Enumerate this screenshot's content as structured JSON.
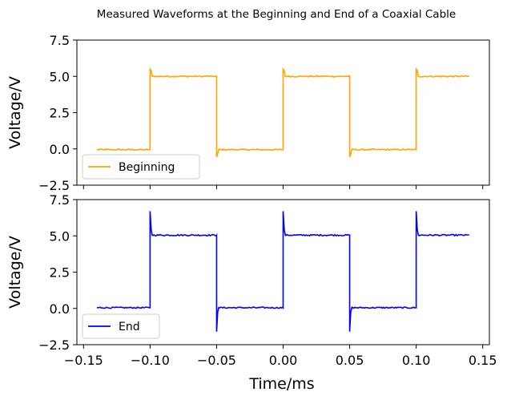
{
  "chart_data": {
    "type": "line",
    "title": "Measured Waveforms at the Beginning and End of a Coaxial Cable",
    "xlabel": "Time/ms",
    "xlim": [
      -0.155,
      0.155
    ],
    "xticks": [
      -0.15,
      -0.1,
      -0.05,
      0.0,
      0.05,
      0.1,
      0.15
    ],
    "xtick_labels": [
      "−0.15",
      "−0.10",
      "−0.05",
      "0.00",
      "0.05",
      "0.10",
      "0.15"
    ],
    "grid": false,
    "panels": [
      {
        "ylabel": "Voltage/V",
        "ylim": [
          -2.5,
          7.5
        ],
        "yticks": [
          -2.5,
          0.0,
          2.5,
          5.0,
          7.5
        ],
        "ytick_labels": [
          "−2.5",
          "0.0",
          "2.5",
          "5.0",
          "7.5"
        ],
        "legend_position": "lower-left",
        "series": [
          {
            "name": "Beginning",
            "color": "#ffa500",
            "low_level": -0.05,
            "high_level": 5.0,
            "edges": [
              -0.1,
              -0.05,
              0.0,
              0.05,
              0.1
            ],
            "rise_overshoot": 5.5,
            "fall_undershoot": -0.55,
            "x_start": -0.14,
            "x_end": 0.14
          }
        ]
      },
      {
        "ylabel": "Voltage/V",
        "ylim": [
          -2.5,
          7.5
        ],
        "yticks": [
          -2.5,
          0.0,
          2.5,
          5.0,
          7.5
        ],
        "ytick_labels": [
          "−2.5",
          "0.0",
          "2.5",
          "5.0",
          "7.5"
        ],
        "legend_position": "lower-left",
        "series": [
          {
            "name": "End",
            "color": "#0000ff",
            "low_level": 0.05,
            "high_level": 5.05,
            "edges": [
              -0.1,
              -0.05,
              0.0,
              0.05,
              0.1
            ],
            "rise_overshoot": 6.7,
            "fall_undershoot": -1.6,
            "x_start": -0.14,
            "x_end": 0.14
          }
        ]
      }
    ]
  }
}
